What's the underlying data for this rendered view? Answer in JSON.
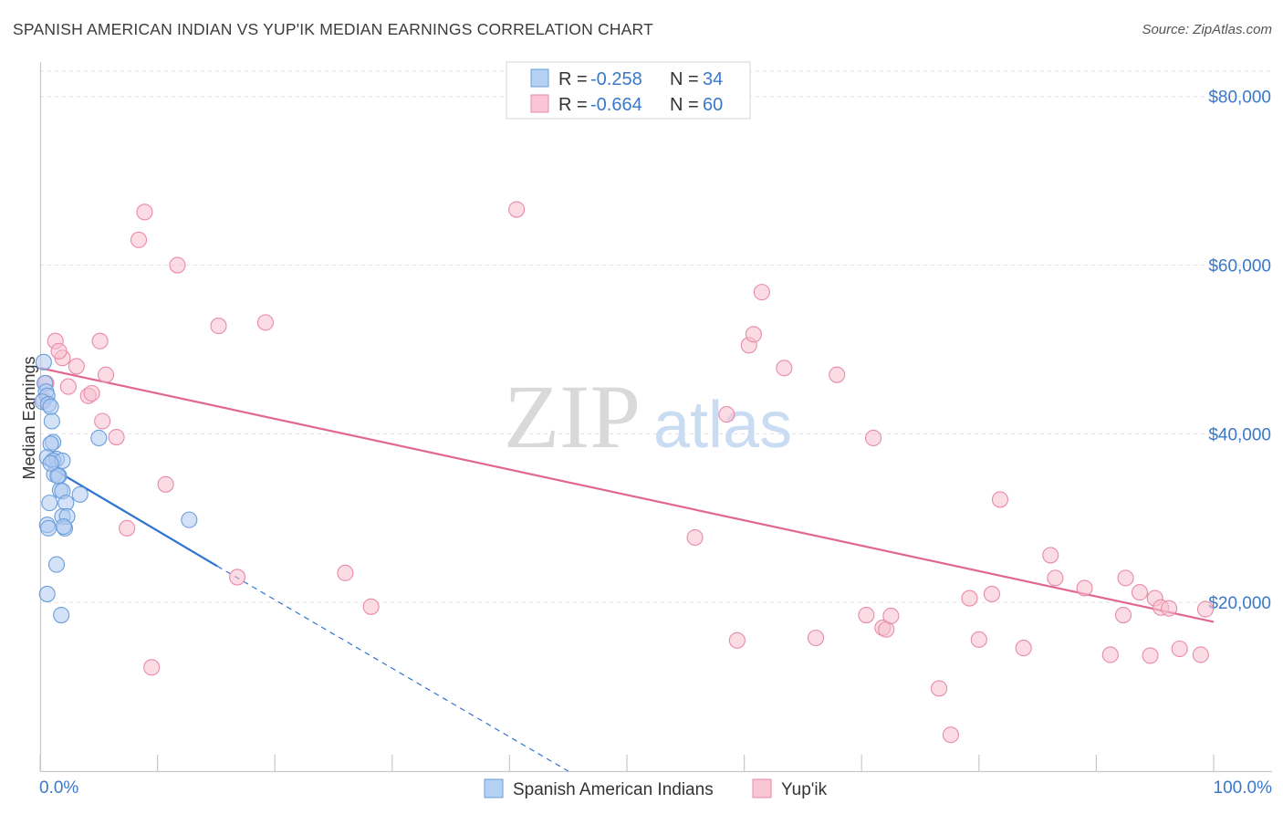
{
  "header": {
    "title": "SPANISH AMERICAN INDIAN VS YUP'IK MEDIAN EARNINGS CORRELATION CHART",
    "source": "Source: ZipAtlas.com"
  },
  "watermark": {
    "zip": "ZIP",
    "atlas": "atlas"
  },
  "legend": {
    "r_label": "R =",
    "n_label": "N =",
    "entries": [
      {
        "r": "-0.258",
        "n": "34"
      },
      {
        "r": "-0.664",
        "n": "60"
      }
    ]
  },
  "colors": {
    "blue_fill": "#aecbf0",
    "blue_stroke": "#6a9edc",
    "blue_line": "#2f74d0",
    "pink_fill": "#f7bfd0",
    "pink_stroke": "#e98aa8",
    "pink_line": "#e0678f",
    "tick_text": "#3a78c9"
  },
  "chart_data": {
    "type": "scatter",
    "title": "SPANISH AMERICAN INDIAN VS YUP'IK MEDIAN EARNINGS CORRELATION CHART",
    "xlabel": "",
    "ylabel": "Median Earnings",
    "xlim": [
      0,
      100
    ],
    "ylim": [
      0,
      83000
    ],
    "x_tick_labels": [
      "0.0%",
      "100.0%"
    ],
    "y_ticks": [
      20000,
      40000,
      60000,
      80000
    ],
    "y_tick_labels": [
      "$20,000",
      "$40,000",
      "$60,000",
      "$80,000"
    ],
    "series": [
      {
        "name": "Spanish American Indians",
        "color": "blue",
        "points": [
          [
            0.3,
            48500
          ],
          [
            0.4,
            46000
          ],
          [
            0.5,
            45000
          ],
          [
            0.6,
            44500
          ],
          [
            0.2,
            43800
          ],
          [
            0.7,
            43500
          ],
          [
            0.9,
            43200
          ],
          [
            1.0,
            41500
          ],
          [
            1.1,
            39000
          ],
          [
            0.9,
            38800
          ],
          [
            0.6,
            37200
          ],
          [
            1.4,
            37000
          ],
          [
            1.1,
            36800
          ],
          [
            1.9,
            36800
          ],
          [
            1.2,
            35200
          ],
          [
            1.6,
            35000
          ],
          [
            1.7,
            33300
          ],
          [
            1.9,
            33200
          ],
          [
            3.4,
            32800
          ],
          [
            2.2,
            31800
          ],
          [
            0.8,
            31800
          ],
          [
            1.9,
            30200
          ],
          [
            2.3,
            30200
          ],
          [
            0.6,
            29200
          ],
          [
            0.7,
            28800
          ],
          [
            2.1,
            28800
          ],
          [
            1.4,
            24500
          ],
          [
            0.6,
            21000
          ],
          [
            1.8,
            18500
          ],
          [
            5.0,
            39500
          ],
          [
            12.7,
            29800
          ],
          [
            1.5,
            35000
          ],
          [
            0.9,
            36500
          ],
          [
            2.0,
            29000
          ]
        ],
        "trend": {
          "x1": 0.3,
          "y1": 36500,
          "x2": 15.1,
          "y2": 24300,
          "dash_to_x": 45.0,
          "dash_to_y": 0
        }
      },
      {
        "name": "Yup'ik",
        "color": "pink",
        "points": [
          [
            0.3,
            44000
          ],
          [
            0.5,
            46000
          ],
          [
            1.3,
            51000
          ],
          [
            1.9,
            49000
          ],
          [
            1.6,
            49800
          ],
          [
            2.4,
            45600
          ],
          [
            3.1,
            48000
          ],
          [
            4.1,
            44500
          ],
          [
            4.4,
            44800
          ],
          [
            5.1,
            51000
          ],
          [
            5.6,
            47000
          ],
          [
            5.3,
            41500
          ],
          [
            6.5,
            39600
          ],
          [
            7.4,
            28800
          ],
          [
            8.4,
            63000
          ],
          [
            8.9,
            66300
          ],
          [
            9.5,
            12300
          ],
          [
            10.7,
            34000
          ],
          [
            11.7,
            60000
          ],
          [
            15.2,
            52800
          ],
          [
            16.8,
            23000
          ],
          [
            19.2,
            53200
          ],
          [
            26.0,
            23500
          ],
          [
            28.2,
            19500
          ],
          [
            40.6,
            66600
          ],
          [
            55.8,
            27700
          ],
          [
            58.5,
            42300
          ],
          [
            59.4,
            15500
          ],
          [
            60.4,
            50500
          ],
          [
            60.8,
            51800
          ],
          [
            61.5,
            56800
          ],
          [
            63.4,
            47800
          ],
          [
            66.1,
            15800
          ],
          [
            67.9,
            47000
          ],
          [
            70.4,
            18500
          ],
          [
            71.8,
            17000
          ],
          [
            72.1,
            16800
          ],
          [
            71.0,
            39500
          ],
          [
            72.5,
            18400
          ],
          [
            76.6,
            9800
          ],
          [
            77.6,
            4300
          ],
          [
            79.2,
            20500
          ],
          [
            80.0,
            15600
          ],
          [
            81.1,
            21000
          ],
          [
            81.8,
            32200
          ],
          [
            83.8,
            14600
          ],
          [
            86.1,
            25600
          ],
          [
            86.5,
            22900
          ],
          [
            89.0,
            21700
          ],
          [
            91.2,
            13800
          ],
          [
            92.5,
            22900
          ],
          [
            92.3,
            18500
          ],
          [
            93.7,
            21200
          ],
          [
            94.6,
            13700
          ],
          [
            95.0,
            20500
          ],
          [
            95.5,
            19400
          ],
          [
            96.2,
            19300
          ],
          [
            97.1,
            14500
          ],
          [
            98.9,
            13800
          ],
          [
            99.3,
            19200
          ]
        ],
        "trend": {
          "x1": 0.0,
          "y1": 47800,
          "x2": 100.0,
          "y2": 17700
        }
      }
    ]
  }
}
